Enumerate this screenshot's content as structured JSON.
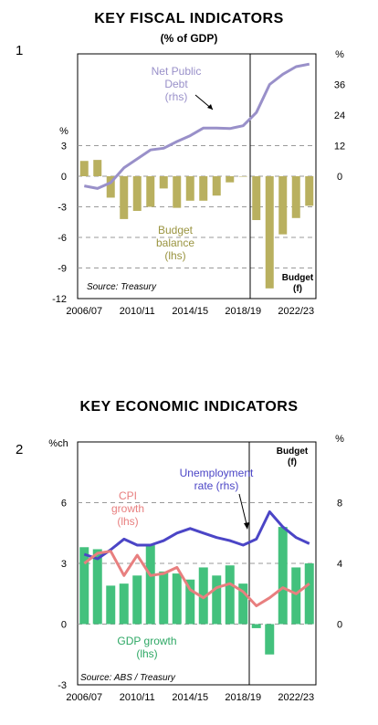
{
  "colors": {
    "bar1": "#b9b05f",
    "line1": "#9990c9",
    "bar2": "#43c17d",
    "unemp": "#4b45c6",
    "cpi": "#e87f7f",
    "grid": "#9a9a9a"
  },
  "chart_data": [
    {
      "number": "1",
      "type": "bar",
      "title": "KEY FISCAL INDICATORS",
      "subtitle": "(%  of GDP)",
      "left_unit": "%",
      "right_unit": "%",
      "left_ticks": [
        "3",
        "0",
        "-3",
        "-6",
        "-9",
        "-12"
      ],
      "right_ticks": [
        "36",
        "24",
        "12",
        "0"
      ],
      "x_tick_labels": [
        "2006/07",
        "2010/11",
        "2014/15",
        "2018/19",
        "2022/23"
      ],
      "x": [
        "2006/07",
        "2007/08",
        "2008/09",
        "2009/10",
        "2010/11",
        "2011/12",
        "2012/13",
        "2013/14",
        "2014/15",
        "2015/16",
        "2016/17",
        "2017/18",
        "2018/19",
        "2019/20",
        "2020/21",
        "2021/22",
        "2022/23",
        "2023/24"
      ],
      "ylim_left": [
        -12,
        12
      ],
      "ylim_right": [
        -48,
        48
      ],
      "series": [
        {
          "name": "Budget balance (lhs)",
          "axis": "left",
          "type": "bar",
          "values": [
            1.5,
            1.6,
            -2.1,
            -4.2,
            -3.4,
            -3.0,
            -1.2,
            -3.1,
            -2.4,
            -2.4,
            -1.9,
            -0.6,
            0.0,
            -4.3,
            -11.0,
            -5.7,
            -4.1,
            -2.9
          ]
        },
        {
          "name": "Net Public Debt (rhs)",
          "axis": "right",
          "type": "line",
          "values": [
            -3.8,
            -4.8,
            -2.5,
            3.3,
            6.8,
            10.3,
            11.0,
            13.6,
            15.9,
            18.9,
            18.9,
            18.7,
            19.8,
            25.0,
            36.0,
            40.0,
            43.0,
            44.0
          ]
        }
      ],
      "annotations": {
        "debt": [
          "Net Public",
          "Debt",
          "(rhs)"
        ],
        "balance": [
          "Budget",
          "balance",
          "(lhs)"
        ],
        "budget": [
          "Budget",
          "(f)"
        ],
        "source": "Source: Treasury"
      }
    },
    {
      "number": "2",
      "type": "bar",
      "title": "KEY ECONOMIC INDICATORS",
      "left_unit": "%ch",
      "right_unit": "%",
      "left_ticks": [
        "6",
        "3",
        "0",
        "-3"
      ],
      "right_ticks": [
        "8",
        "4",
        "0"
      ],
      "x_tick_labels": [
        "2006/07",
        "2010/11",
        "2014/15",
        "2018/19",
        "2022/23"
      ],
      "x": [
        "2006/07",
        "2007/08",
        "2008/09",
        "2009/10",
        "2010/11",
        "2011/12",
        "2012/13",
        "2013/14",
        "2014/15",
        "2015/16",
        "2016/17",
        "2017/18",
        "2018/19",
        "2019/20",
        "2020/21",
        "2021/22",
        "2022/23",
        "2023/24"
      ],
      "ylim_left": [
        -3,
        9
      ],
      "ylim_right": [
        -4,
        12
      ],
      "series": [
        {
          "name": "GDP growth (lhs)",
          "axis": "left",
          "type": "bar",
          "values": [
            3.8,
            3.7,
            1.9,
            2.0,
            2.4,
            3.9,
            2.6,
            2.5,
            2.2,
            2.8,
            2.4,
            2.9,
            2.0,
            -0.2,
            -1.5,
            4.8,
            2.8,
            3.0
          ]
        },
        {
          "name": "Unemployment rate (rhs)",
          "axis": "right",
          "type": "line",
          "values": [
            4.6,
            4.3,
            4.9,
            5.6,
            5.2,
            5.2,
            5.5,
            6.0,
            6.3,
            6.0,
            5.7,
            5.5,
            5.2,
            5.6,
            7.4,
            6.4,
            5.7,
            5.3
          ]
        },
        {
          "name": "CPI growth (lhs)",
          "axis": "left",
          "type": "line",
          "values": [
            3.0,
            3.5,
            3.6,
            2.4,
            3.4,
            2.4,
            2.5,
            2.8,
            1.7,
            1.3,
            1.8,
            2.0,
            1.6,
            0.9,
            1.3,
            1.8,
            1.5,
            2.0
          ]
        }
      ],
      "annotations": {
        "unemp": [
          "Unemployment",
          "rate (rhs)"
        ],
        "cpi": [
          "CPI",
          "growth",
          "(lhs)"
        ],
        "gdp": [
          "GDP growth",
          "(lhs)"
        ],
        "budget": [
          "Budget",
          "(f)"
        ],
        "source": "Source: ABS / Treasury"
      }
    }
  ]
}
